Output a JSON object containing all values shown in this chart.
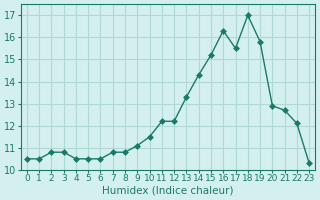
{
  "x": [
    0,
    1,
    2,
    3,
    4,
    5,
    6,
    7,
    8,
    9,
    10,
    11,
    12,
    13,
    14,
    15,
    16,
    17,
    18,
    19,
    20,
    21,
    22,
    23
  ],
  "y": [
    10.5,
    10.5,
    10.8,
    10.8,
    10.5,
    10.5,
    10.5,
    10.8,
    10.8,
    11.1,
    11.5,
    12.2,
    12.2,
    13.3,
    14.3,
    15.2,
    16.3,
    15.5,
    17.0,
    15.8,
    12.9,
    12.7,
    12.1,
    10.3
  ],
  "line_color": "#1a7a6a",
  "marker": "D",
  "marker_size": 3,
  "bg_color": "#d4f0ee",
  "grid_color": "#b0d8d4",
  "xlabel": "Humidex (Indice chaleur)",
  "xlim": [
    -0.5,
    23.5
  ],
  "ylim": [
    10.0,
    17.5
  ],
  "yticks": [
    10,
    11,
    12,
    13,
    14,
    15,
    16,
    17
  ],
  "xtick_labels": [
    "0",
    "1",
    "2",
    "3",
    "4",
    "5",
    "6",
    "7",
    "8",
    "9",
    "10",
    "11",
    "12",
    "13",
    "14",
    "15",
    "16",
    "17",
    "18",
    "19",
    "20",
    "21",
    "22",
    "23"
  ],
  "xlabel_fontsize": 7.5,
  "tick_fontsize": 7,
  "axis_color": "#1a7a6a"
}
